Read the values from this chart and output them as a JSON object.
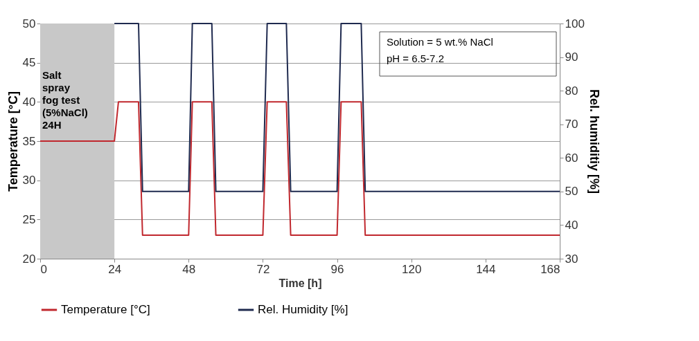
{
  "chart_data": {
    "type": "line",
    "xlabel": "Time [h]",
    "ylabel": "Temperature [°C]",
    "y2label": "Rel. humiditiy [%]",
    "xlim": [
      0,
      168
    ],
    "xticks": [
      0,
      24,
      48,
      72,
      96,
      120,
      144,
      168
    ],
    "ylim": [
      20,
      50
    ],
    "yticks": [
      20,
      25,
      30,
      35,
      40,
      45,
      50
    ],
    "y2lim": [
      30,
      100
    ],
    "y2ticks": [
      30,
      40,
      50,
      60,
      70,
      80,
      90,
      100
    ],
    "grid": "y",
    "legend": "bottom",
    "line_style": "solid",
    "series": [
      {
        "name": "Temperature [°C]",
        "color": "#c0272d",
        "x": [
          0,
          24,
          25.3,
          31.8,
          33.1,
          48,
          49.2,
          55.5,
          56.8,
          72,
          73.4,
          79.6,
          81,
          96,
          97.3,
          103.8,
          105.1,
          168
        ],
        "values": [
          35,
          35,
          40,
          40,
          23,
          23,
          40,
          40,
          23,
          23,
          40,
          40,
          23,
          23,
          40,
          40,
          23,
          23
        ]
      },
      {
        "name": "Rel. Humidity [%]",
        "color": "#1f2a4f",
        "axis": "y2",
        "x": [
          24,
          31.8,
          33.1,
          48,
          49.2,
          55.5,
          56.8,
          72,
          73.4,
          79.6,
          81,
          96,
          97.3,
          103.8,
          105.1,
          168
        ],
        "values": [
          100,
          100,
          50,
          50,
          100,
          100,
          50,
          50,
          100,
          100,
          50,
          50,
          100,
          100,
          50,
          50
        ]
      }
    ],
    "bands": [
      {
        "axis": "x",
        "from": 0,
        "to": 24,
        "label": "Salt\nspray\nfog test\n(5%NaCl)\n24H",
        "color": "#c8c8c8"
      }
    ],
    "annotations": [
      "Solution = 5 wt.% NaCl",
      "pH = 6.5-7.2"
    ]
  }
}
